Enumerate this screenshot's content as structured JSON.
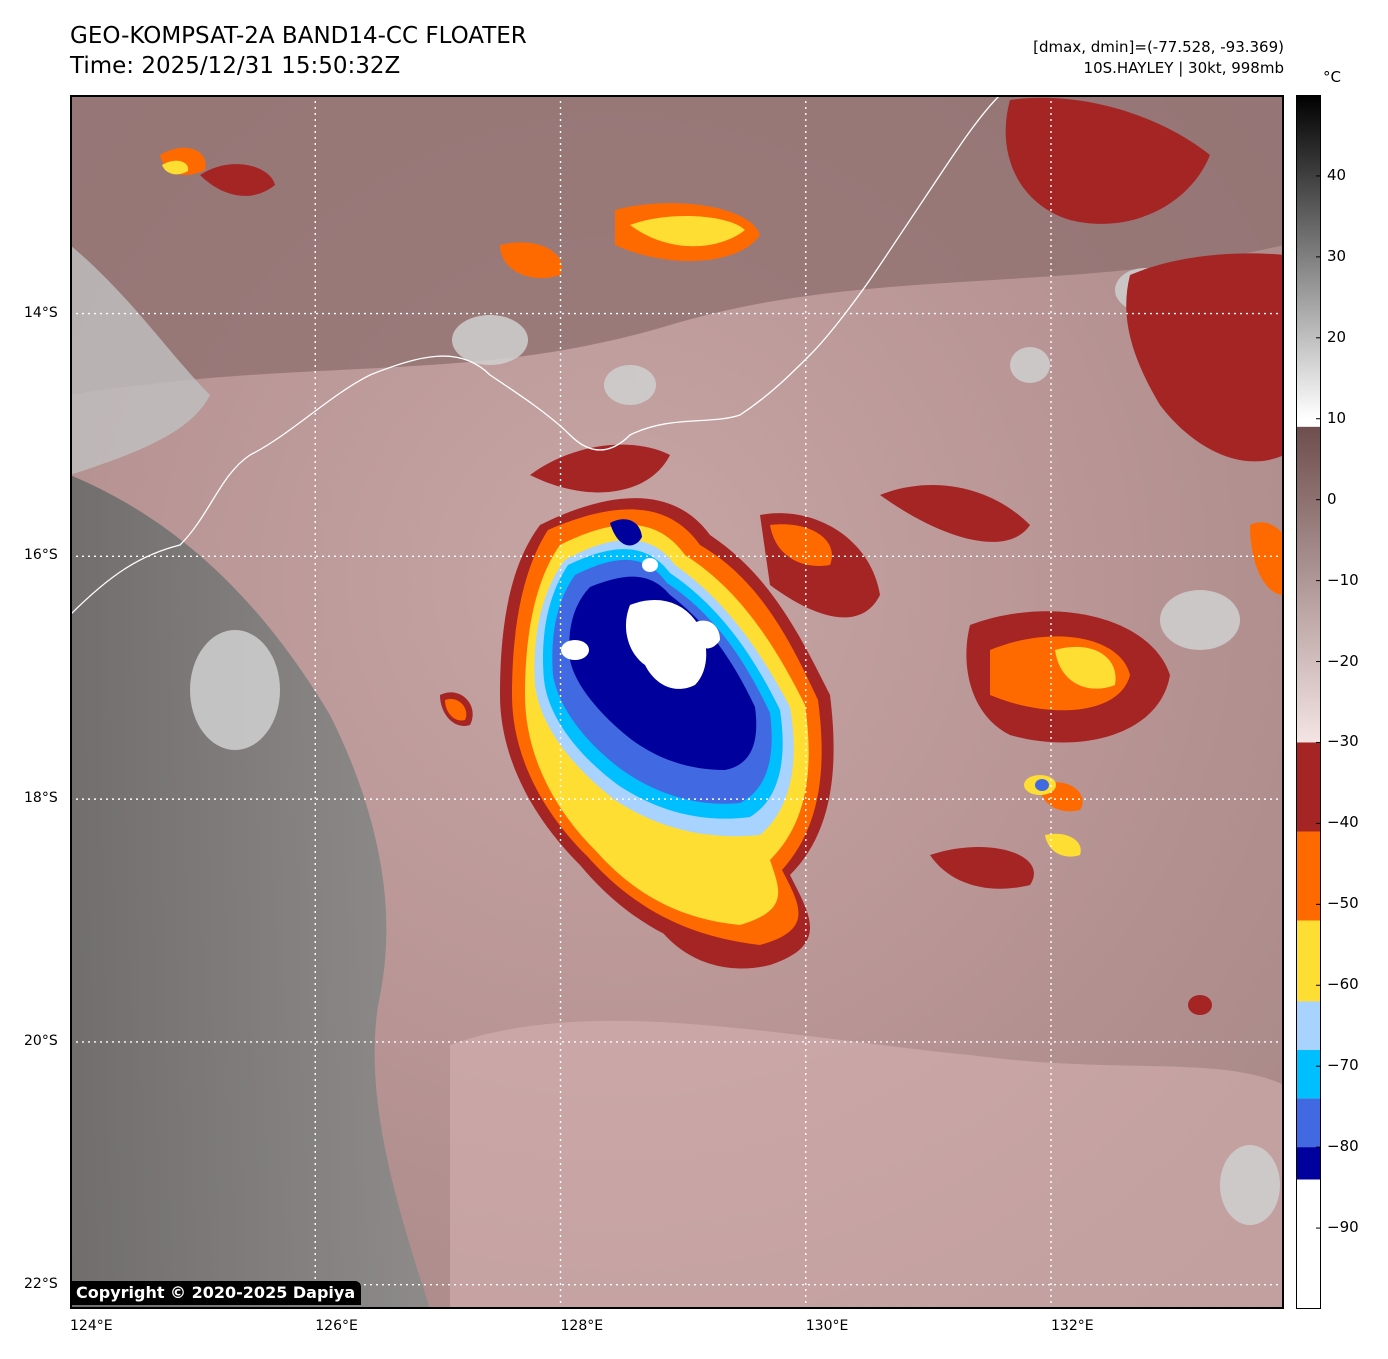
{
  "header": {
    "title": "GEO-KOMPSAT-2A BAND14-CC FLOATER",
    "time": "Time: 2025/12/31 15:50:32Z",
    "dminmax": "[dmax, dmin]=(-77.528, -93.369)",
    "storm": "10S.HAYLEY | 30kt, 998mb"
  },
  "map": {
    "lat_labels": [
      "14°S",
      "16°S",
      "18°S",
      "20°S",
      "22°S"
    ],
    "lon_labels": [
      "124°E",
      "126°E",
      "128°E",
      "130°E",
      "132°E"
    ],
    "lat_values": [
      -14,
      -16,
      -18,
      -20,
      -22
    ],
    "lon_values": [
      124,
      126,
      128,
      130,
      132
    ],
    "extent": {
      "lon_min": 124,
      "lon_max": 133.9,
      "lat_top": -12.2,
      "lat_bottom": -22.2
    },
    "copyright": "Copyright © 2020-2025 Dapiya"
  },
  "colorbar": {
    "unit": "°C",
    "tick_values": [
      40,
      30,
      20,
      10,
      0,
      -10,
      -20,
      -30,
      -40,
      -50,
      -60,
      -70,
      -80,
      -90
    ],
    "tick_labels": [
      "40",
      "30",
      "20",
      "10",
      "0",
      "−10",
      "−20",
      "−30",
      "−40",
      "−50",
      "−60",
      "−70",
      "−80",
      "−90"
    ],
    "range": [
      -100,
      50
    ],
    "segments": [
      {
        "from": 10,
        "to": 50,
        "gradient": [
          "#ffffff",
          "#000000"
        ]
      },
      {
        "from": -30,
        "to": 9,
        "gradient": [
          "#f4e4e4",
          "#6e4e4e"
        ]
      },
      {
        "from": -41,
        "to": -30,
        "color": "#a52424"
      },
      {
        "from": -52,
        "to": -41,
        "color": "#ff6a00"
      },
      {
        "from": -62,
        "to": -52,
        "color": "#ffde33"
      },
      {
        "from": -68,
        "to": -62,
        "color": "#a8d2ff"
      },
      {
        "from": -74,
        "to": -68,
        "color": "#00bfff"
      },
      {
        "from": -80,
        "to": -74,
        "color": "#4169e1"
      },
      {
        "from": -84,
        "to": -80,
        "color": "#00009c"
      },
      {
        "from": -100,
        "to": -84,
        "color": "#ffffff"
      }
    ]
  },
  "colors": {
    "cloud_warm": "#8a6a6a",
    "cloud_cool": "#d8b8b8",
    "land_grey": "#909090",
    "coast": "#ffffff",
    "grid": "#ffffff"
  }
}
